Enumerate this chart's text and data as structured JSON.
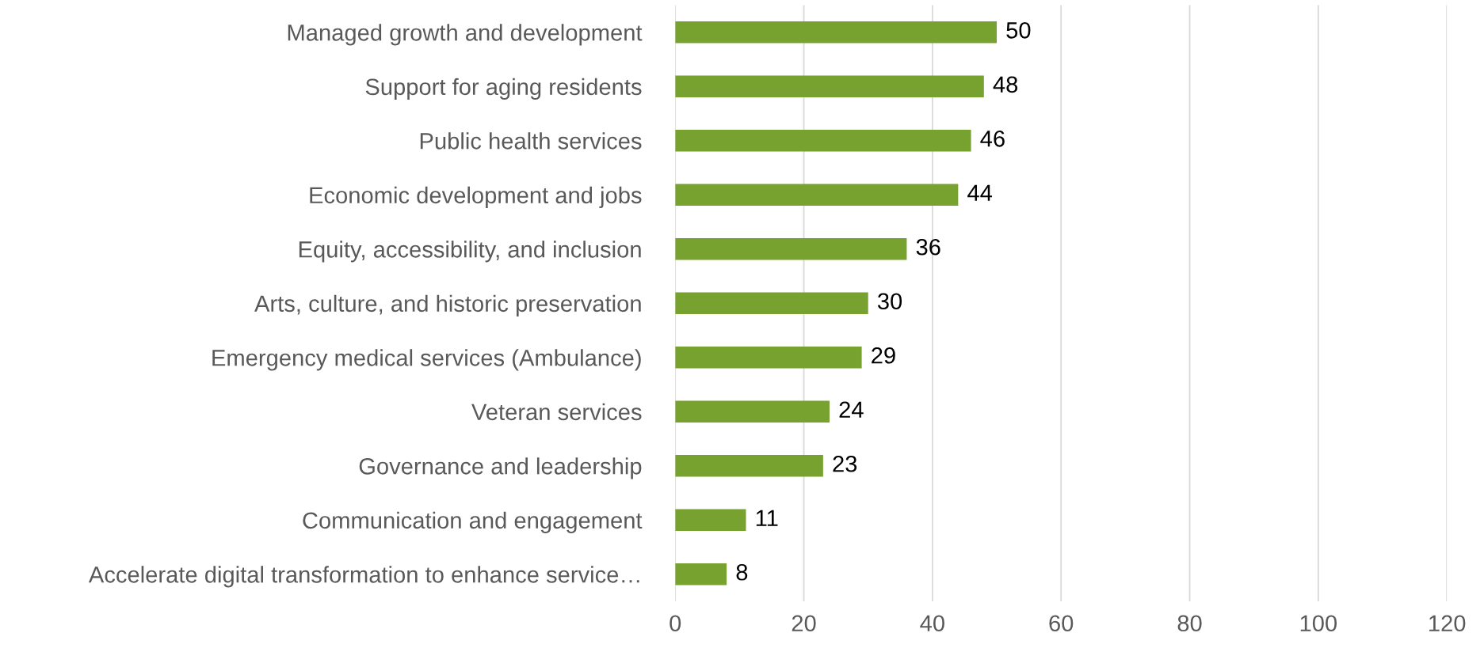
{
  "chart_data": {
    "type": "bar",
    "orientation": "horizontal",
    "categories": [
      "Managed growth and development",
      "Support for aging residents",
      "Public health services",
      "Economic development and jobs",
      "Equity, accessibility, and inclusion",
      "Arts, culture, and historic preservation",
      "Emergency medical services (Ambulance)",
      "Veteran services",
      "Governance and leadership",
      "Communication and engagement",
      "Accelerate digital transformation to enhance service…"
    ],
    "values": [
      50,
      48,
      46,
      44,
      36,
      30,
      29,
      24,
      23,
      11,
      8
    ],
    "color": "#78a22f",
    "data_labels": true,
    "xlim": [
      0,
      120
    ],
    "xticks": [
      0,
      20,
      40,
      60,
      80,
      100,
      120
    ],
    "grid": "x",
    "legend": false
  }
}
